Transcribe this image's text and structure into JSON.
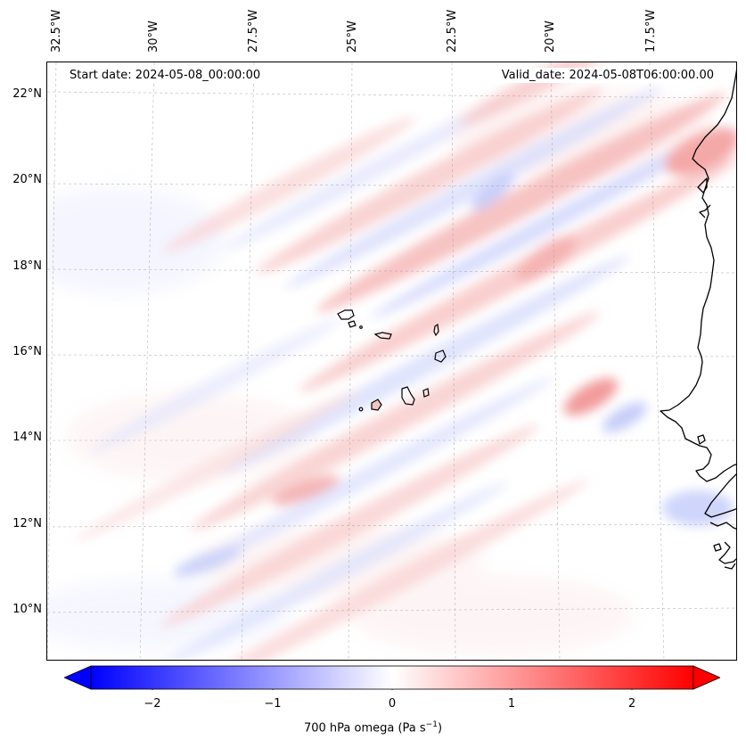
{
  "map": {
    "longitude_labels": [
      "32.5°W",
      "30°W",
      "27.5°W",
      "25°W",
      "22.5°W",
      "20°W",
      "17.5°W"
    ],
    "latitude_labels": [
      "22°N",
      "20°N",
      "18°N",
      "16°N",
      "14°N",
      "12°N",
      "10°N"
    ],
    "start_date": "Start date: 2024-05-08_00:00:00",
    "valid_date": "Valid_date: 2024-05-08T06:00:00.00",
    "field": "700 hPa omega",
    "colormap": "bwr",
    "gridline_color": "#9a9a9a",
    "coastline_color": "#000000"
  },
  "colorbar": {
    "ticks": [
      "−2",
      "−1",
      "0",
      "1",
      "2"
    ],
    "tick_values": [
      -2,
      -1,
      0,
      1,
      2
    ],
    "range": [
      -2.6,
      2.6
    ],
    "extend": "both",
    "label": "700 hPa omega (Pa s",
    "label_sup": "−1",
    "label_end": ")"
  },
  "colors": {
    "negative": "#0000ff",
    "neutral": "#ffffff",
    "positive": "#ff0000"
  }
}
